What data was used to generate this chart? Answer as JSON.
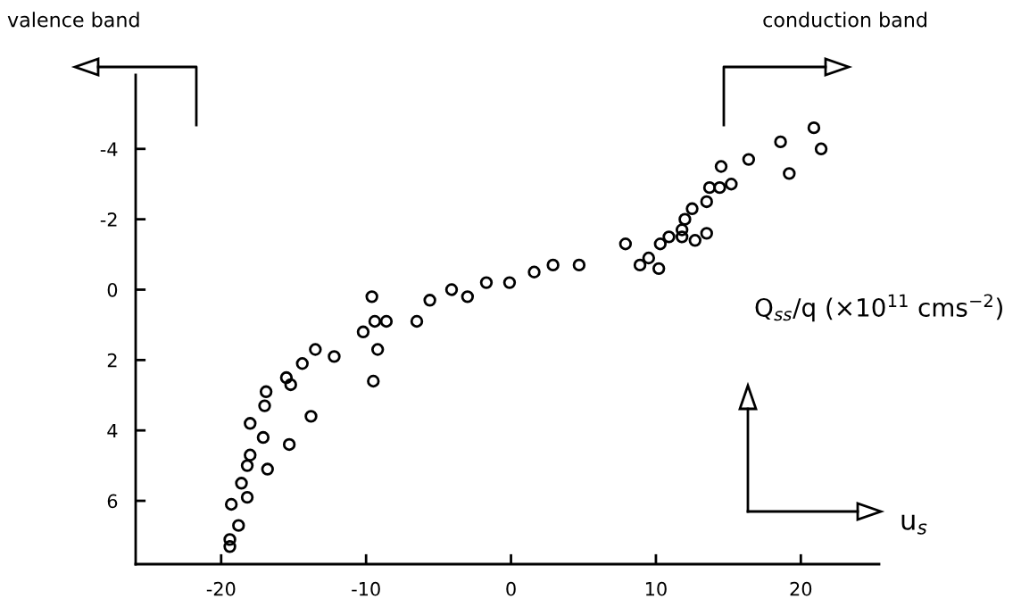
{
  "chart_data": {
    "type": "scatter",
    "xlabel": "u$_{s}$",
    "ylabel": "Q$_{ss}$/q (×10$^{11}$ cms$^{−2}$)",
    "annotations": [
      "valence band",
      "conduction band"
    ],
    "x": [
      -9.6,
      -9.4,
      -8.6,
      -6.5,
      -10.2,
      -9.2,
      -9.5,
      -13.5,
      -12.2,
      -14.4,
      -15.5,
      -15.2,
      -13.8,
      -16.9,
      -17.0,
      -18.0,
      -17.1,
      -15.3,
      -18.0,
      -18.2,
      -16.8,
      -18.6,
      -18.2,
      -19.3,
      -18.8,
      -19.4,
      -19.4,
      -5.6,
      -4.1,
      -3.0,
      -1.7,
      -0.1,
      1.6,
      2.9,
      4.7,
      7.9,
      8.9,
      9.5,
      10.2,
      10.3,
      10.9,
      11.8,
      11.8,
      12.7,
      12.0,
      12.5,
      13.5,
      13.5,
      13.7,
      14.4,
      15.2,
      14.5,
      16.4,
      18.6,
      19.2,
      20.9,
      21.4
    ],
    "series": [
      {
        "color": "#000000",
        "values": [
          0.2,
          0.9,
          0.9,
          0.9,
          1.2,
          1.7,
          2.6,
          1.7,
          1.9,
          2.1,
          2.5,
          2.7,
          3.6,
          2.9,
          3.3,
          3.8,
          4.2,
          4.4,
          4.7,
          5.0,
          5.1,
          5.5,
          5.9,
          6.1,
          6.7,
          7.1,
          7.3,
          0.3,
          0.0,
          0.2,
          -0.2,
          -0.2,
          -0.5,
          -0.7,
          -0.7,
          -1.3,
          -0.7,
          -0.9,
          -0.6,
          -1.3,
          -1.5,
          -1.5,
          -1.7,
          -1.4,
          -2.0,
          -2.3,
          -2.5,
          -1.6,
          -2.9,
          -2.9,
          -3.0,
          -3.5,
          -3.7,
          -4.2,
          -3.3,
          -4.6,
          -4.0
        ]
      }
    ],
    "xlim": [
      -25.9,
      25.4
    ],
    "ylim": [
      7.8,
      -6.1
    ],
    "xticks": [
      -20,
      -10,
      0,
      10,
      20
    ],
    "yticks": [
      -4,
      -2,
      0,
      2,
      4,
      6
    ],
    "marker": "circle",
    "grid": false
  }
}
